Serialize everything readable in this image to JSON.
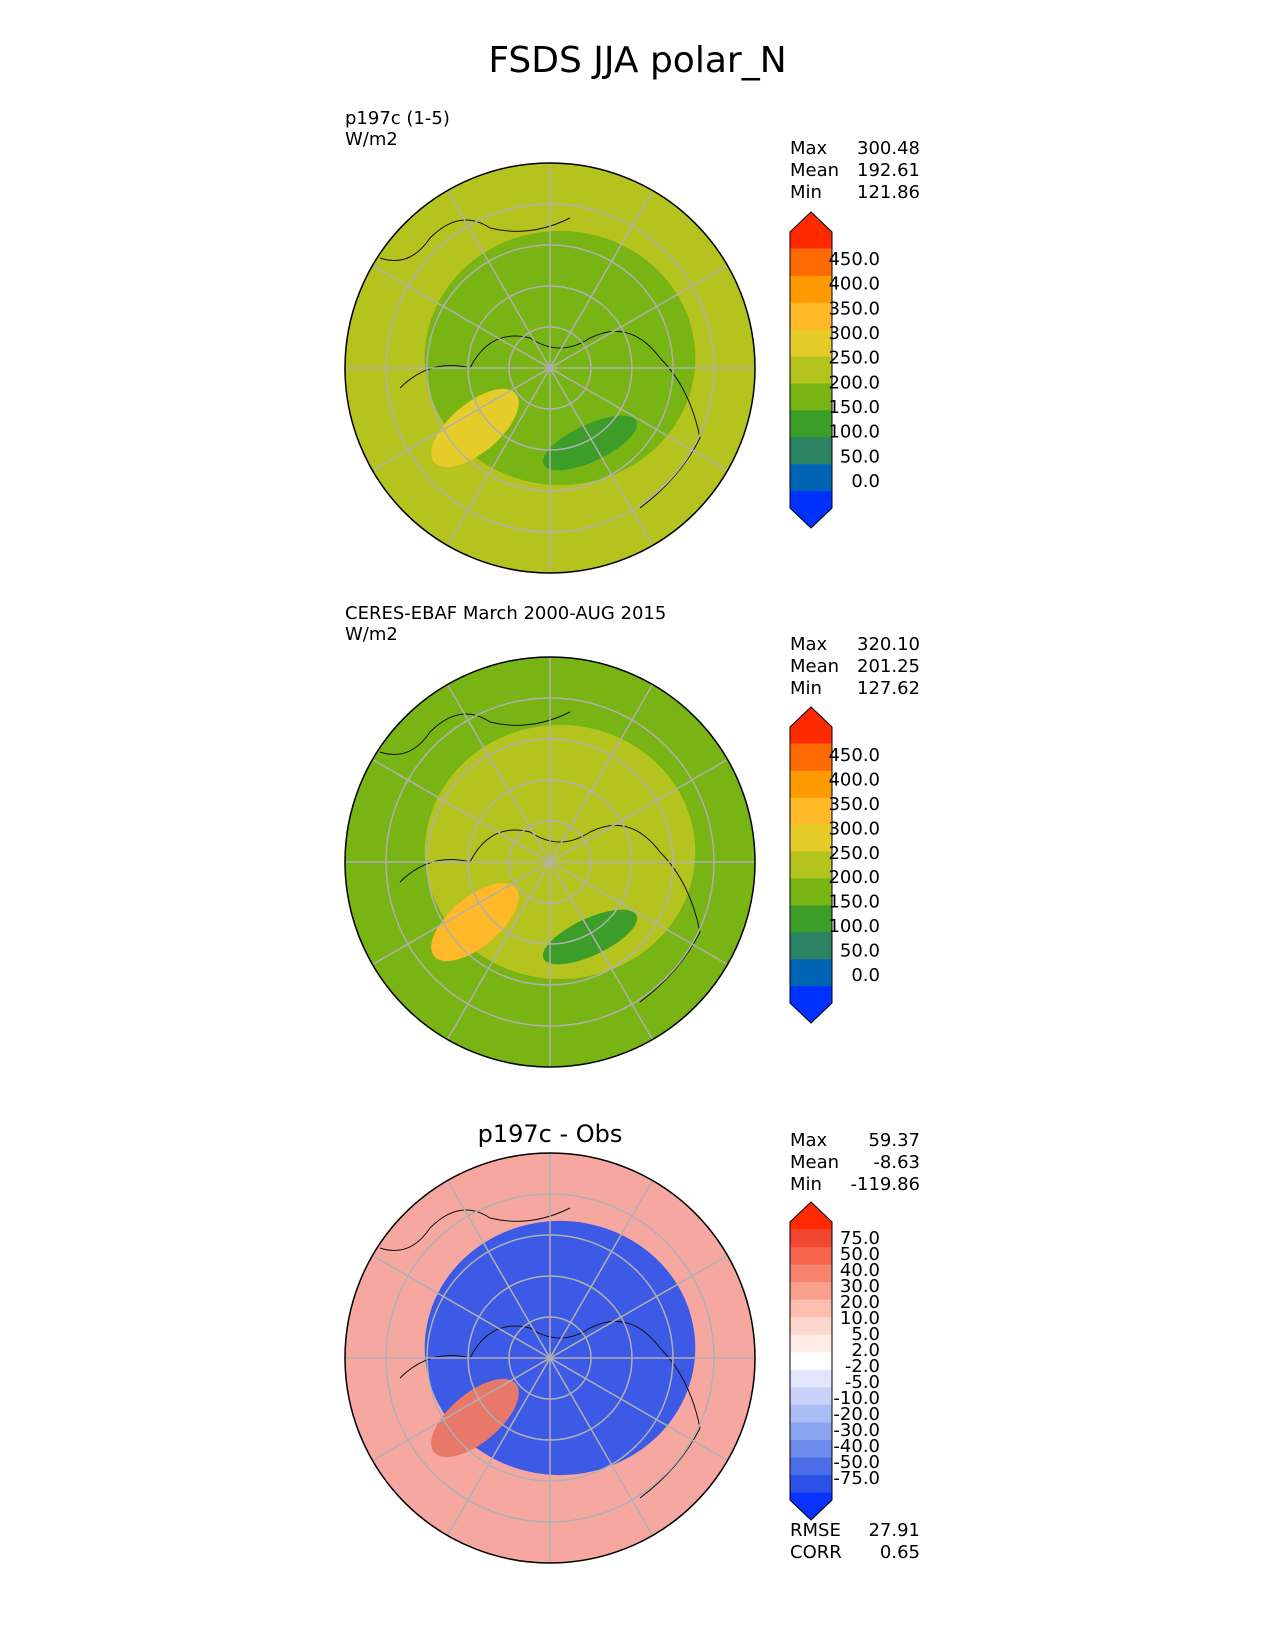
{
  "figure": {
    "title": "FSDS JJA polar_N"
  },
  "panels": [
    {
      "label_line1": "p197c (1-5)",
      "label_line2": "W/m2",
      "title": "",
      "stats": [
        {
          "k": "Max",
          "v": "300.48"
        },
        {
          "k": "Mean",
          "v": "192.61"
        },
        {
          "k": "Min",
          "v": "121.86"
        }
      ],
      "extra_stats": []
    },
    {
      "label_line1": "CERES-EBAF March 2000-AUG 2015",
      "label_line2": "W/m2",
      "title": "",
      "stats": [
        {
          "k": "Max",
          "v": "320.10"
        },
        {
          "k": "Mean",
          "v": "201.25"
        },
        {
          "k": "Min",
          "v": "127.62"
        }
      ],
      "extra_stats": []
    },
    {
      "label_line1": "",
      "label_line2": "",
      "title": "p197c - Obs",
      "stats": [
        {
          "k": "Max",
          "v": "59.37"
        },
        {
          "k": "Mean",
          "v": "-8.63"
        },
        {
          "k": "Min",
          "v": "-119.86"
        }
      ],
      "extra_stats": [
        {
          "k": "RMSE",
          "v": "27.91"
        },
        {
          "k": "CORR",
          "v": "0.65"
        }
      ]
    }
  ],
  "chart_data": [
    {
      "type": "heatmap",
      "projection": "north polar stereographic",
      "units": "W/m2",
      "colorbar_ticks": [
        "450.0",
        "400.0",
        "350.0",
        "300.0",
        "250.0",
        "200.0",
        "150.0",
        "100.0",
        "50.0",
        "0.0"
      ],
      "colorbar_colors": [
        "#ff2a00",
        "#ff6a00",
        "#ff9a00",
        "#ffb828",
        "#e6cc28",
        "#b4c31e",
        "#78b414",
        "#3c9e28",
        "#2d8264",
        "#0064b4",
        "#0032ff"
      ],
      "stats": {
        "max": 300.48,
        "mean": 192.61,
        "min": 121.86
      },
      "regions": {
        "background": "#b4c31e",
        "interior": "#78b414",
        "greenland": "#e6cc28",
        "low": "#3c9e28"
      }
    },
    {
      "type": "heatmap",
      "projection": "north polar stereographic",
      "units": "W/m2",
      "colorbar_ticks": [
        "450.0",
        "400.0",
        "350.0",
        "300.0",
        "250.0",
        "200.0",
        "150.0",
        "100.0",
        "50.0",
        "0.0"
      ],
      "colorbar_colors": [
        "#ff2a00",
        "#ff6a00",
        "#ff9a00",
        "#ffb828",
        "#e6cc28",
        "#b4c31e",
        "#78b414",
        "#3c9e28",
        "#2d8264",
        "#0064b4",
        "#0032ff"
      ],
      "stats": {
        "max": 320.1,
        "mean": 201.25,
        "min": 127.62
      },
      "regions": {
        "background": "#78b414",
        "interior": "#b4c31e",
        "greenland": "#ffb828",
        "low": "#3c9e28"
      }
    },
    {
      "type": "heatmap",
      "projection": "north polar stereographic",
      "colorbar_ticks": [
        "75.0",
        "50.0",
        "40.0",
        "30.0",
        "20.0",
        "10.0",
        "5.0",
        "2.0",
        "-2.0",
        "-5.0",
        "-10.0",
        "-20.0",
        "-30.0",
        "-40.0",
        "-50.0",
        "-75.0"
      ],
      "colorbar_colors": [
        "#ff2a00",
        "#f04632",
        "#f5644b",
        "#f7826e",
        "#f9a08c",
        "#fbbeaf",
        "#fdd7cd",
        "#feebe6",
        "#ffffff",
        "#e1e6fa",
        "#c8d2f8",
        "#aabef5",
        "#8ca5f0",
        "#6e8cec",
        "#4b6ee6",
        "#2d50e6",
        "#0a32ff"
      ],
      "stats": {
        "max": 59.37,
        "mean": -8.63,
        "min": -119.86,
        "rmse": 27.91,
        "corr": 0.65
      },
      "regions": {
        "background": "#f6a8a0",
        "interior": "#3c5ae6",
        "greenland": "#e8786a",
        "low": "#3c5ae6"
      }
    }
  ]
}
